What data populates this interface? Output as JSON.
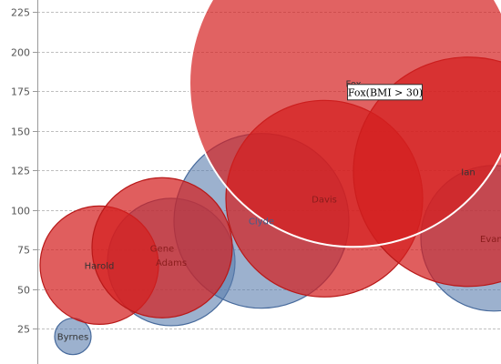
{
  "chart_data": {
    "type": "bubble",
    "title": "",
    "xlabel": "",
    "ylabel": "",
    "ylim": [
      12,
      230
    ],
    "xlim": [
      0,
      550
    ],
    "grid": true,
    "y_ticks": [
      25,
      50,
      75,
      100,
      125,
      150,
      175,
      200,
      225
    ],
    "colors": {
      "normal": "#5a7dae",
      "obese": "#d42020",
      "grid": "#bfbfbf",
      "axis": "#9a9a9a"
    },
    "bubbles": [
      {
        "label": "Byrnes",
        "x": 80,
        "y": 20,
        "r": 20,
        "group": "normal",
        "label_color": "#333333"
      },
      {
        "label": "Adams",
        "x": 188,
        "y": 67,
        "r": 70,
        "group": "normal",
        "label_color": "#8a1c1c"
      },
      {
        "label": "Clyde",
        "x": 287,
        "y": 93,
        "r": 96,
        "group": "normal",
        "label_color": "#3f5f8f"
      },
      {
        "label": "Evans",
        "x": 542,
        "y": 82,
        "r": 80,
        "group": "normal",
        "label_color": "#8a1c1c"
      },
      {
        "label": "Davis",
        "x": 356,
        "y": 107,
        "r": 108,
        "group": "obese",
        "label_color": "#8a1c1c"
      },
      {
        "label": "Harold",
        "x": 109,
        "y": 65,
        "r": 65,
        "group": "obese",
        "label_color": "#333333"
      },
      {
        "label": "Gene",
        "x": 178,
        "y": 76,
        "r": 77,
        "group": "obese",
        "label_color": "#8a1c1c"
      },
      {
        "label": "Ian",
        "x": 514,
        "y": 124,
        "r": 126,
        "group": "obese",
        "label_color": "#333333"
      },
      {
        "label": "Fox",
        "x": 388,
        "y": 180,
        "r": 180,
        "group": "obese",
        "label_color": "#333333",
        "highlighted": true
      }
    ],
    "tooltip": {
      "text": "Fox(BMI > 30)",
      "target": "Fox"
    }
  }
}
